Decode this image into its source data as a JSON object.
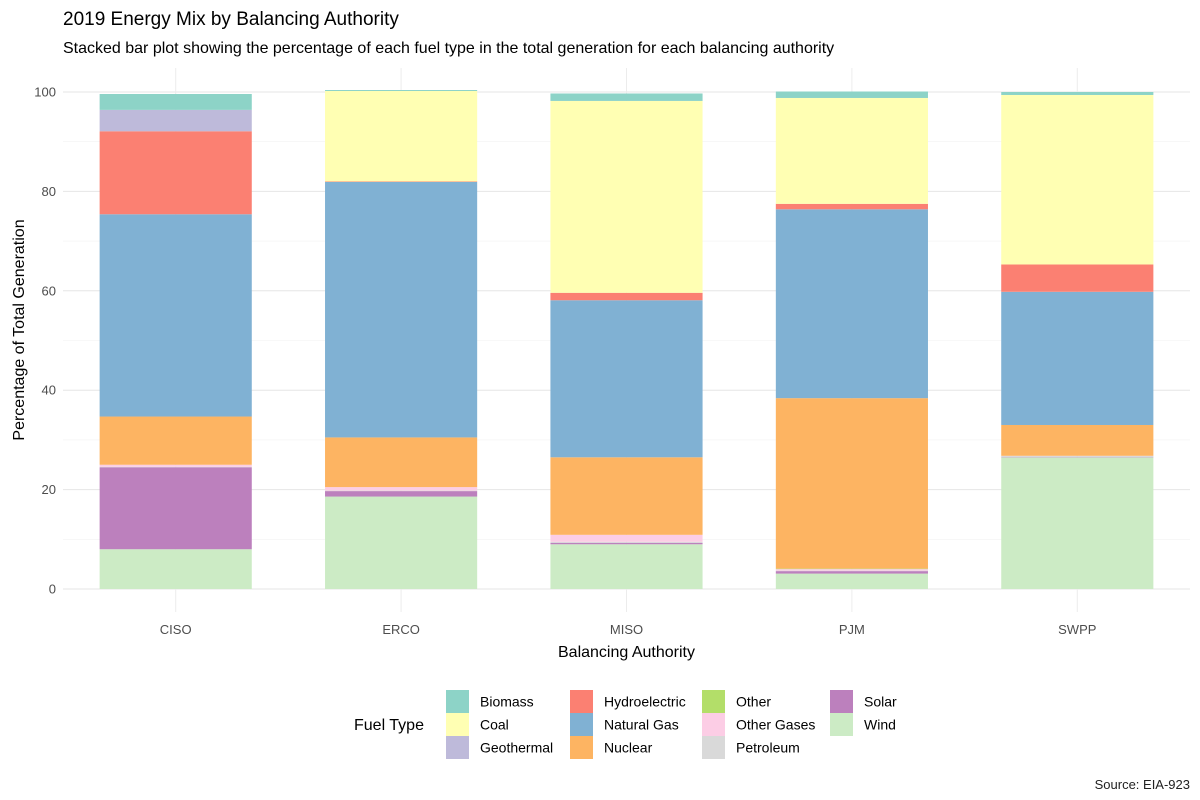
{
  "title": "2019 Energy Mix by Balancing Authority",
  "subtitle": "Stacked bar plot showing the percentage of each fuel type in the total generation for each balancing authority",
  "caption": "Source: EIA-923",
  "legend_title": "Fuel Type",
  "chart_data": {
    "type": "bar",
    "stacked": true,
    "xlabel": "Balancing Authority",
    "ylabel": "Percentage of Total Generation",
    "ylim": [
      0,
      100
    ],
    "y_ticks": [
      0,
      20,
      40,
      60,
      80,
      100
    ],
    "grid": true,
    "legend_position": "bottom",
    "categories": [
      "CISO",
      "ERCO",
      "MISO",
      "PJM",
      "SWPP"
    ],
    "stack_order": [
      "Wind",
      "Solar",
      "Petroleum",
      "Other Gases",
      "Other",
      "Nuclear",
      "Natural Gas",
      "Hydroelectric",
      "Geothermal",
      "Coal",
      "Biomass"
    ],
    "legend_order": [
      "Biomass",
      "Coal",
      "Geothermal",
      "Hydroelectric",
      "Natural Gas",
      "Nuclear",
      "Other",
      "Other Gases",
      "Petroleum",
      "Solar",
      "Wind"
    ],
    "series": [
      {
        "name": "Biomass",
        "color": "#8DD3C7",
        "values": [
          3.2,
          0.2,
          1.5,
          1.3,
          0.6
        ]
      },
      {
        "name": "Coal",
        "color": "#FFFFB3",
        "values": [
          0.0,
          18.2,
          38.6,
          21.3,
          34.1
        ]
      },
      {
        "name": "Geothermal",
        "color": "#BEBADA",
        "values": [
          4.3,
          0.0,
          0.0,
          0.0,
          0.0
        ]
      },
      {
        "name": "Hydroelectric",
        "color": "#FB8072",
        "values": [
          16.7,
          0.1,
          1.5,
          1.1,
          5.5
        ]
      },
      {
        "name": "Natural Gas",
        "color": "#80B1D3",
        "values": [
          40.7,
          51.4,
          31.6,
          38.0,
          26.8
        ]
      },
      {
        "name": "Nuclear",
        "color": "#FDB462",
        "values": [
          9.7,
          10.0,
          15.6,
          34.3,
          6.2
        ]
      },
      {
        "name": "Other",
        "color": "#B3DE69",
        "values": [
          0.0,
          0.0,
          0.0,
          0.1,
          0.0
        ]
      },
      {
        "name": "Other Gases",
        "color": "#FCCDE5",
        "values": [
          0.4,
          0.7,
          1.4,
          0.3,
          0.0
        ]
      },
      {
        "name": "Petroleum",
        "color": "#D9D9D9",
        "values": [
          0.1,
          0.1,
          0.2,
          0.1,
          0.2
        ]
      },
      {
        "name": "Solar",
        "color": "#BC80BD",
        "values": [
          16.5,
          1.1,
          0.3,
          0.5,
          0.1
        ]
      },
      {
        "name": "Wind",
        "color": "#CCEBC5",
        "values": [
          8.0,
          18.6,
          9.0,
          3.1,
          26.5
        ]
      }
    ]
  }
}
